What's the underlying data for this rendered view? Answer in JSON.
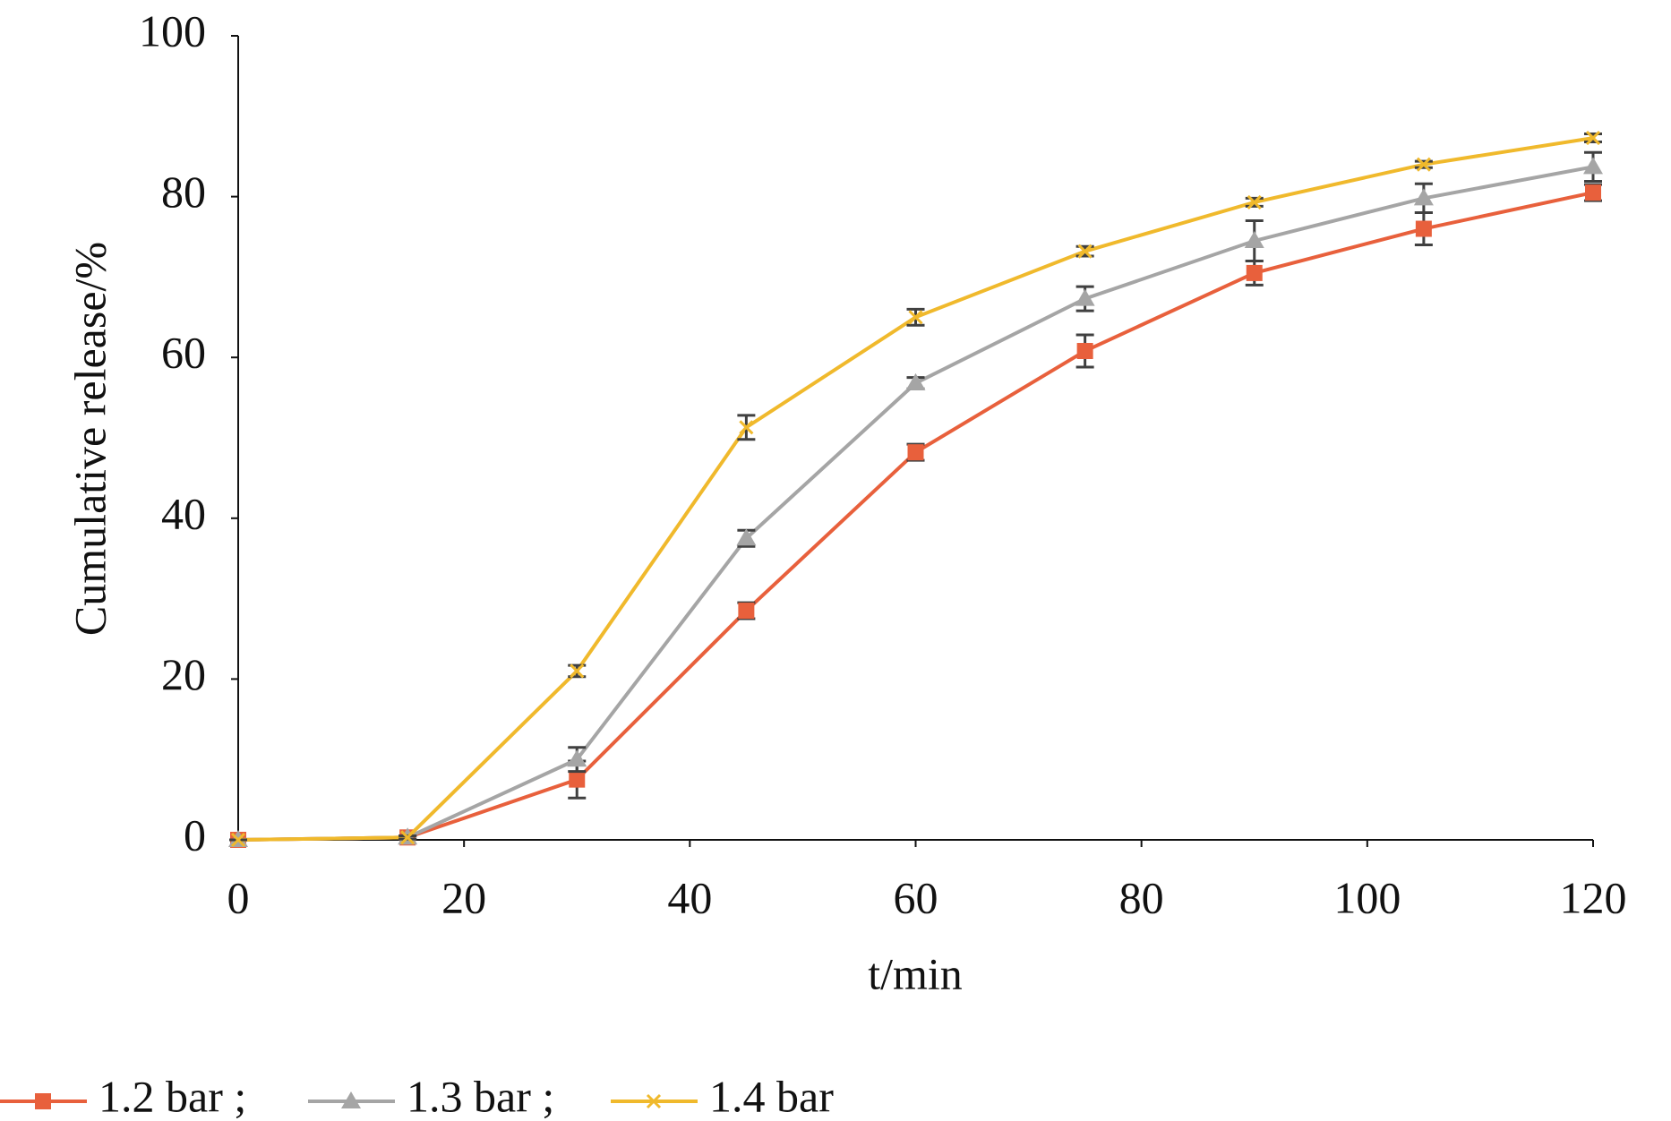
{
  "chart_data": {
    "type": "line",
    "ylabel": "Cumulative release/%",
    "xlabel": "t/min",
    "x": [
      0,
      15,
      30,
      45,
      60,
      75,
      90,
      105,
      120
    ],
    "xlim": [
      0,
      120
    ],
    "xticks": [
      0,
      20,
      40,
      60,
      80,
      100,
      120
    ],
    "ylim": [
      0,
      100
    ],
    "yticks": [
      0,
      20,
      40,
      60,
      80,
      100
    ],
    "legend": "bottom-left",
    "series": [
      {
        "name": "1.2 bar ;",
        "color": "#E8603C",
        "marker": "square",
        "values": [
          0,
          0.3,
          7.5,
          28.5,
          48.2,
          60.8,
          70.5,
          76,
          80.5
        ],
        "errors": [
          0,
          0.2,
          2.3,
          1,
          1,
          2,
          1.5,
          2,
          1
        ]
      },
      {
        "name": "1.3 bar ;",
        "color": "#A5A5A5",
        "marker": "triangle",
        "values": [
          0,
          0.3,
          10,
          37.5,
          56.8,
          67.3,
          74.5,
          79.8,
          83.7
        ],
        "errors": [
          0,
          0.2,
          1.5,
          1,
          0.7,
          1.5,
          2.5,
          1.8,
          1.8
        ]
      },
      {
        "name": "1.4 bar",
        "color": "#F0B92C",
        "marker": "x",
        "values": [
          0,
          0.3,
          21,
          51.3,
          65,
          73.2,
          79.3,
          84,
          87.3
        ],
        "errors": [
          0,
          0.2,
          0.7,
          1.5,
          1,
          0.6,
          0.5,
          0.4,
          0.5
        ]
      }
    ]
  }
}
